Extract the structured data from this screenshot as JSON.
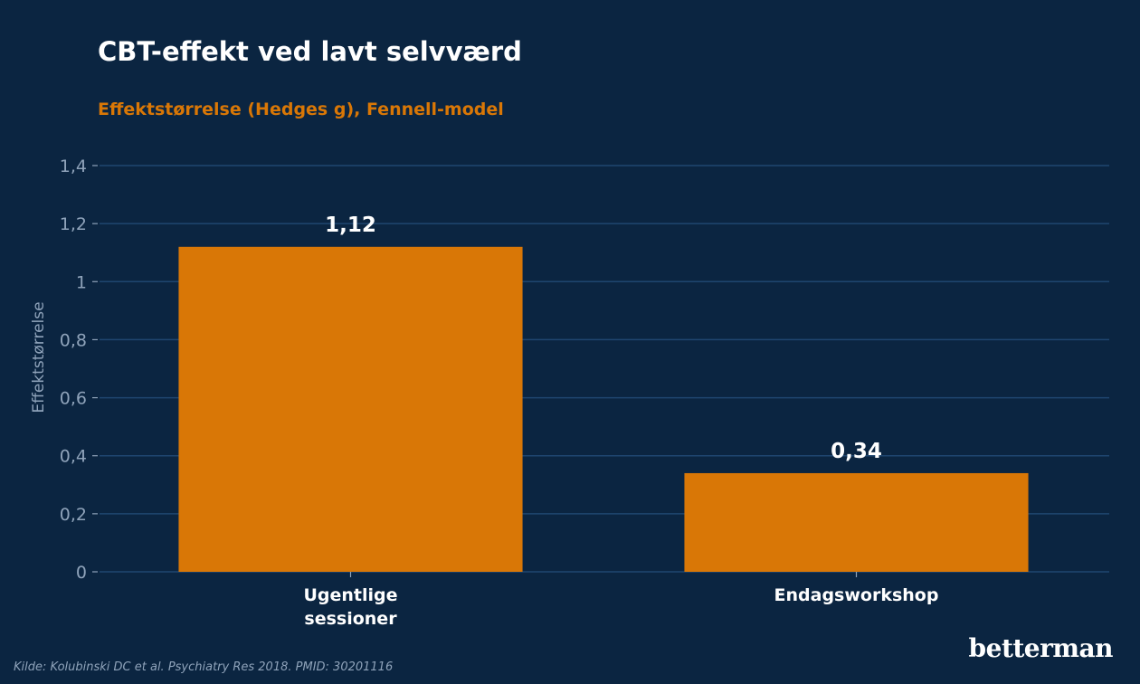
{
  "chart_data": {
    "type": "bar",
    "title": "CBT-effekt ved lavt selvværd",
    "subtitle": "Effektstørrelse (Hedges g), Fennell-model",
    "ylabel": "Effektstørrelse",
    "xlabel": "",
    "categories": [
      [
        "Ugentlige",
        "sessioner"
      ],
      [
        "Endagsworkshop"
      ]
    ],
    "values": [
      1.12,
      0.34
    ],
    "value_labels": [
      "1,12",
      "0,34"
    ],
    "ylim": [
      0,
      1.4
    ],
    "yticks": [
      0,
      0.2,
      0.4,
      0.6,
      0.8,
      1,
      1.2,
      1.4
    ],
    "ytick_labels": [
      "0",
      "0,2",
      "0,4",
      "0,6",
      "0,8",
      "1",
      "1,2",
      "1,4"
    ],
    "grid": true,
    "legend": "none",
    "bar_color": "#d97706"
  },
  "footer": {
    "source": "Kilde: Kolubinski DC et al. Psychiatry Res 2018. PMID: 30201116",
    "brand": "betterman"
  },
  "colors": {
    "background": "#0b2541",
    "grid": "#1f4670",
    "accent": "#d97706",
    "axis_text": "#8fa3ba"
  }
}
